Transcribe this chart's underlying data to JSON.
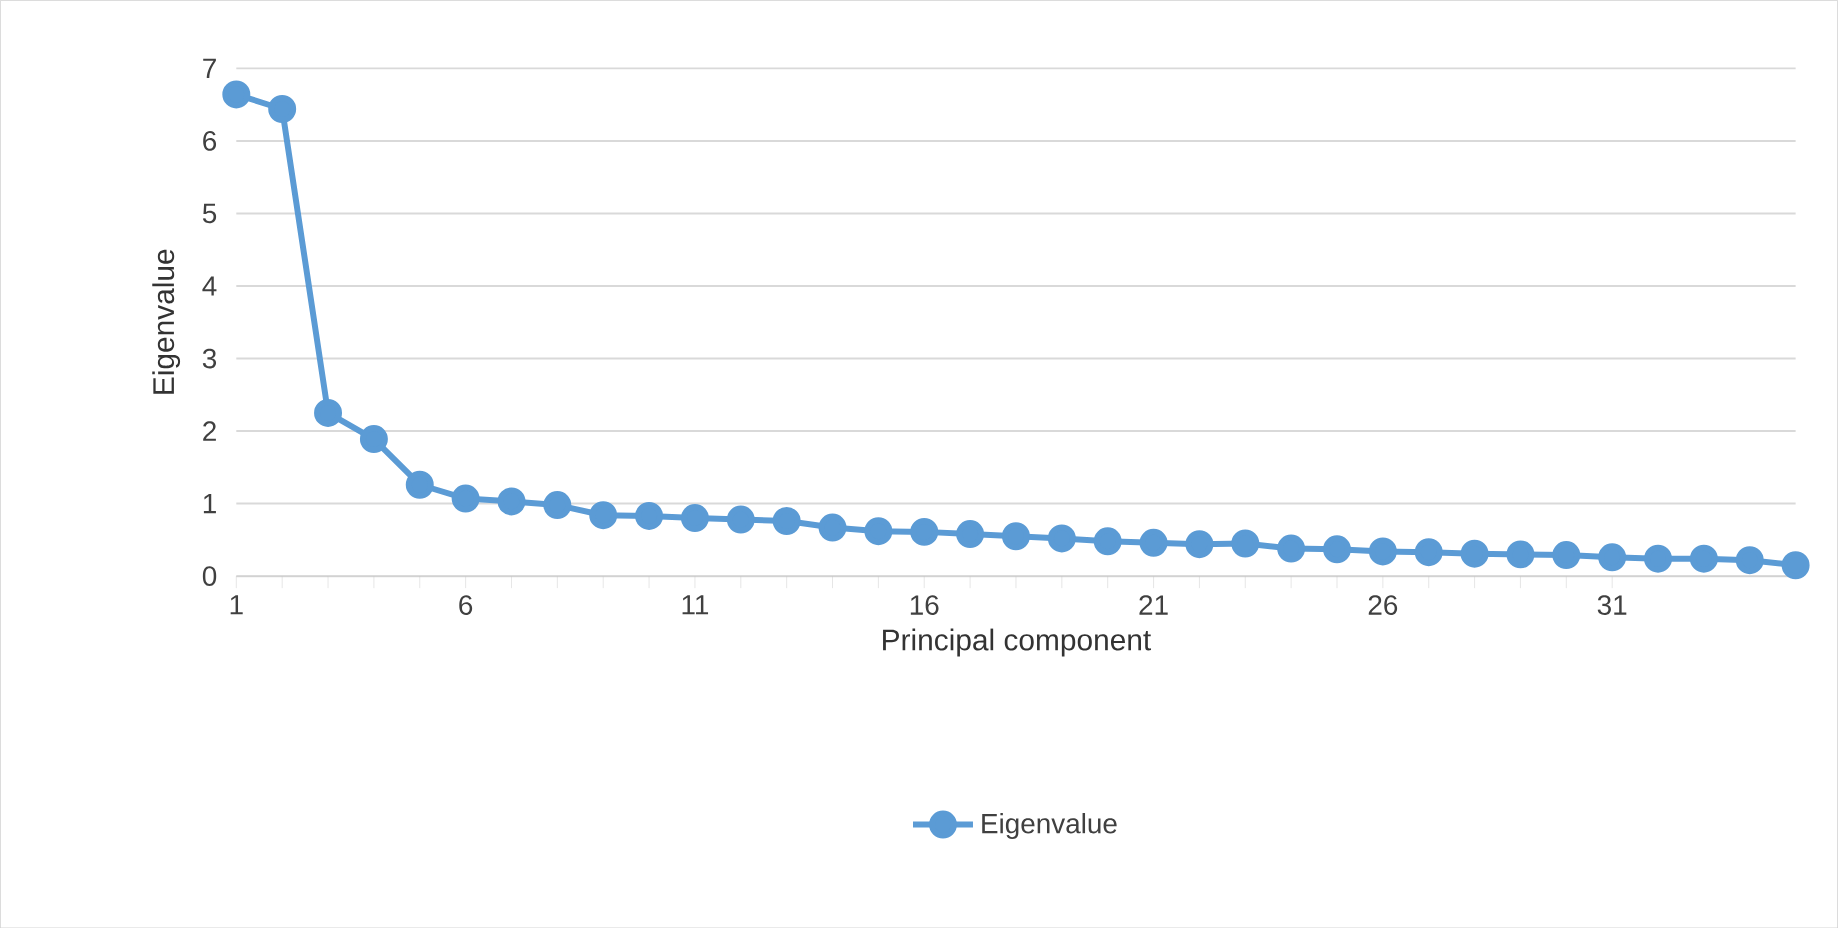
{
  "chart_data": {
    "type": "line",
    "xlabel": "Principal component",
    "ylabel": "Eigenvalue",
    "xlim": [
      1,
      35
    ],
    "xticks": [
      1,
      6,
      11,
      16,
      21,
      26,
      31
    ],
    "ylim": [
      0,
      7
    ],
    "yticks": [
      0,
      1,
      2,
      3,
      4,
      5,
      6,
      7
    ],
    "grid": "y",
    "legend": "bottom",
    "marker": "circle",
    "line_style": "solid",
    "series": [
      {
        "name": "Eigenvalue",
        "color": "#5b9bd5",
        "x": [
          1,
          2,
          3,
          4,
          5,
          6,
          7,
          8,
          9,
          10,
          11,
          12,
          13,
          14,
          15,
          16,
          17,
          18,
          19,
          20,
          21,
          22,
          23,
          24,
          25,
          26,
          27,
          28,
          29,
          30,
          31,
          32,
          33,
          34,
          35
        ],
        "values": [
          6.64,
          6.44,
          2.25,
          1.89,
          1.26,
          1.07,
          1.03,
          0.98,
          0.84,
          0.83,
          0.8,
          0.78,
          0.76,
          0.67,
          0.62,
          0.61,
          0.58,
          0.55,
          0.52,
          0.48,
          0.46,
          0.44,
          0.45,
          0.38,
          0.37,
          0.34,
          0.33,
          0.31,
          0.3,
          0.29,
          0.26,
          0.24,
          0.24,
          0.22,
          0.15
        ]
      }
    ]
  }
}
